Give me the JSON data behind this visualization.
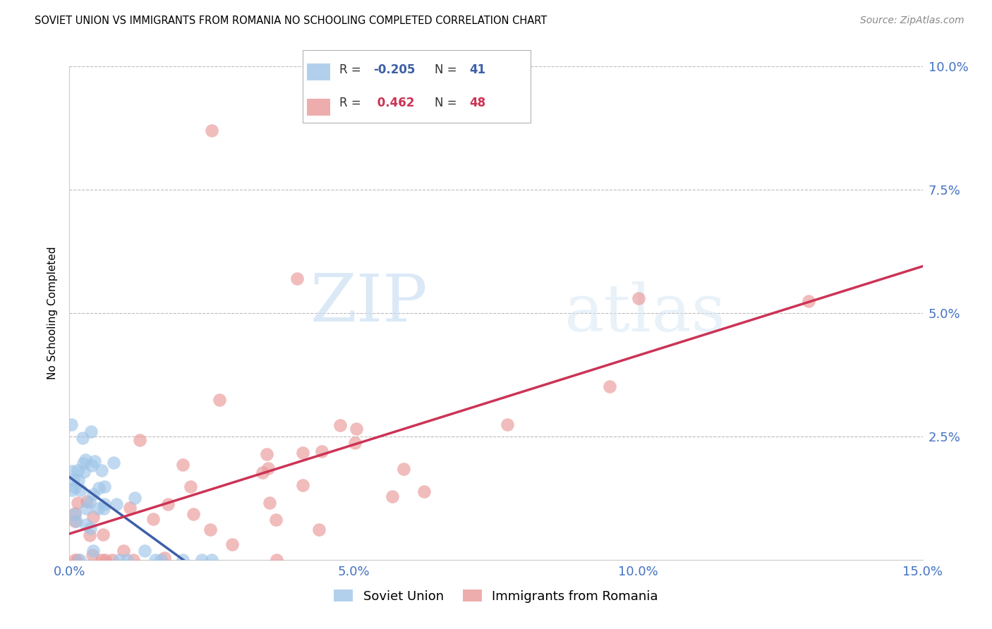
{
  "title": "SOVIET UNION VS IMMIGRANTS FROM ROMANIA NO SCHOOLING COMPLETED CORRELATION CHART",
  "source": "Source: ZipAtlas.com",
  "ylabel": "No Schooling Completed",
  "xlim": [
    0.0,
    0.15
  ],
  "ylim": [
    0.0,
    0.1
  ],
  "xticks": [
    0.0,
    0.025,
    0.05,
    0.075,
    0.1,
    0.125,
    0.15
  ],
  "xtick_labels": [
    "0.0%",
    "",
    "5.0%",
    "",
    "10.0%",
    "",
    "15.0%"
  ],
  "yticks": [
    0.0,
    0.025,
    0.05,
    0.075,
    0.1
  ],
  "ytick_labels": [
    "",
    "2.5%",
    "5.0%",
    "7.5%",
    "10.0%"
  ],
  "soviet_R": -0.205,
  "soviet_N": 41,
  "romania_R": 0.462,
  "romania_N": 48,
  "soviet_color": "#9fc5e8",
  "romania_color": "#ea9999",
  "soviet_line_color": "#3d5fa8",
  "romania_line_color": "#cc3355",
  "watermark_line1": "ZIP",
  "watermark_line2": "atlas",
  "background_color": "#ffffff",
  "grid_color": "#bbbbbb",
  "axis_color": "#4472c4",
  "legend_R1": "R = -0.205",
  "legend_N1": "N =  41",
  "legend_R2": "R =  0.462",
  "legend_N2": "N =  48"
}
